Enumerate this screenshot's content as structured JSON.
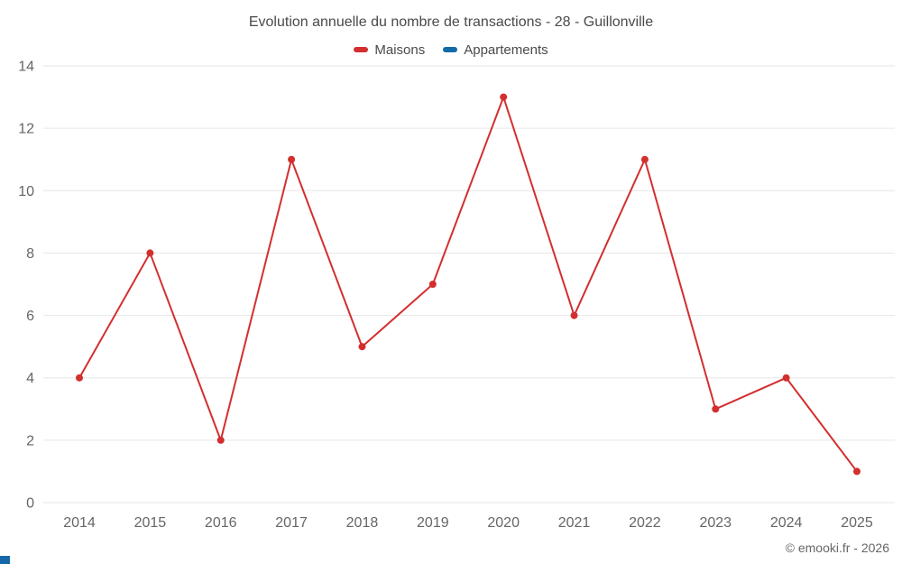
{
  "chart_data": {
    "type": "line",
    "title": "Evolution annuelle du nombre de transactions - 28 - Guillonville",
    "categories": [
      "2014",
      "2015",
      "2016",
      "2017",
      "2018",
      "2019",
      "2020",
      "2021",
      "2022",
      "2023",
      "2024",
      "2025"
    ],
    "series": [
      {
        "name": "Maisons",
        "color": "#d32f2f",
        "values": [
          4,
          8,
          2,
          11,
          5,
          7,
          13,
          6,
          11,
          3,
          4,
          1
        ]
      },
      {
        "name": "Appartements",
        "color": "#1669a8",
        "values": []
      }
    ],
    "xlabel": "",
    "ylabel": "",
    "ylim": [
      0,
      14
    ],
    "ytick_step": 2,
    "grid": "horizontal",
    "legend_position": "top"
  },
  "footer": {
    "copyright": "© emooki.fr - 2026"
  },
  "colors": {
    "grid": "#e6e6e6",
    "axis_text": "#666666",
    "title_text": "#4a4a4a"
  }
}
